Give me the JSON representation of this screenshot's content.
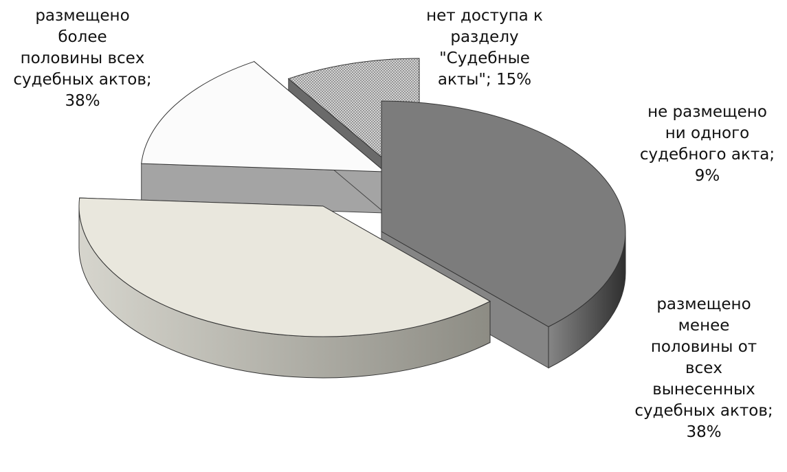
{
  "chart_data": {
    "type": "pie",
    "title": "",
    "slices": [
      {
        "label": "размещено менее половины от всех вынесенных судебных актов",
        "value": 38,
        "value_text": "38%",
        "label_lines": [
          "размещено",
          "менее",
          "половины от",
          "всех",
          "вынесенных",
          "судебных актов;",
          "38%"
        ],
        "top_color": "#7c7c7c",
        "side_color_dark": "#2f2f2f",
        "side_color_light": "#858585",
        "pattern": "none"
      },
      {
        "label": "размещено более половины всех судебных актов",
        "value": 38,
        "value_text": "38%",
        "label_lines": [
          "размещено",
          "более",
          "половины всех",
          "судебных актов;",
          "38%"
        ],
        "top_color": "#e9e7dd",
        "side_color_dark": "#8d8c84",
        "side_color_light": "#d6d5cd",
        "pattern": "none"
      },
      {
        "label": "нет доступа к разделу \"Судебные акты\"",
        "value": 15,
        "value_text": "15%",
        "label_lines": [
          "нет доступа к",
          "разделу",
          "\"Судебные",
          "акты\"; 15%"
        ],
        "top_color": "#fbfbfb",
        "side_color_dark": "#8b8b8b",
        "side_color_light": "#a4a4a4",
        "pattern": "none"
      },
      {
        "label": "не размещено ни одного судебного акта",
        "value": 9,
        "value_text": "9%",
        "label_lines": [
          "не размещено",
          "ни одного",
          "судебного акта;",
          "9%"
        ],
        "top_color": "#bdbdbd",
        "side_color_dark": "#4e4e4e",
        "side_color_light": "#6a6a6a",
        "pattern": "dots-and-lines"
      }
    ],
    "exploded": true,
    "three_d": true,
    "legend": "none"
  }
}
